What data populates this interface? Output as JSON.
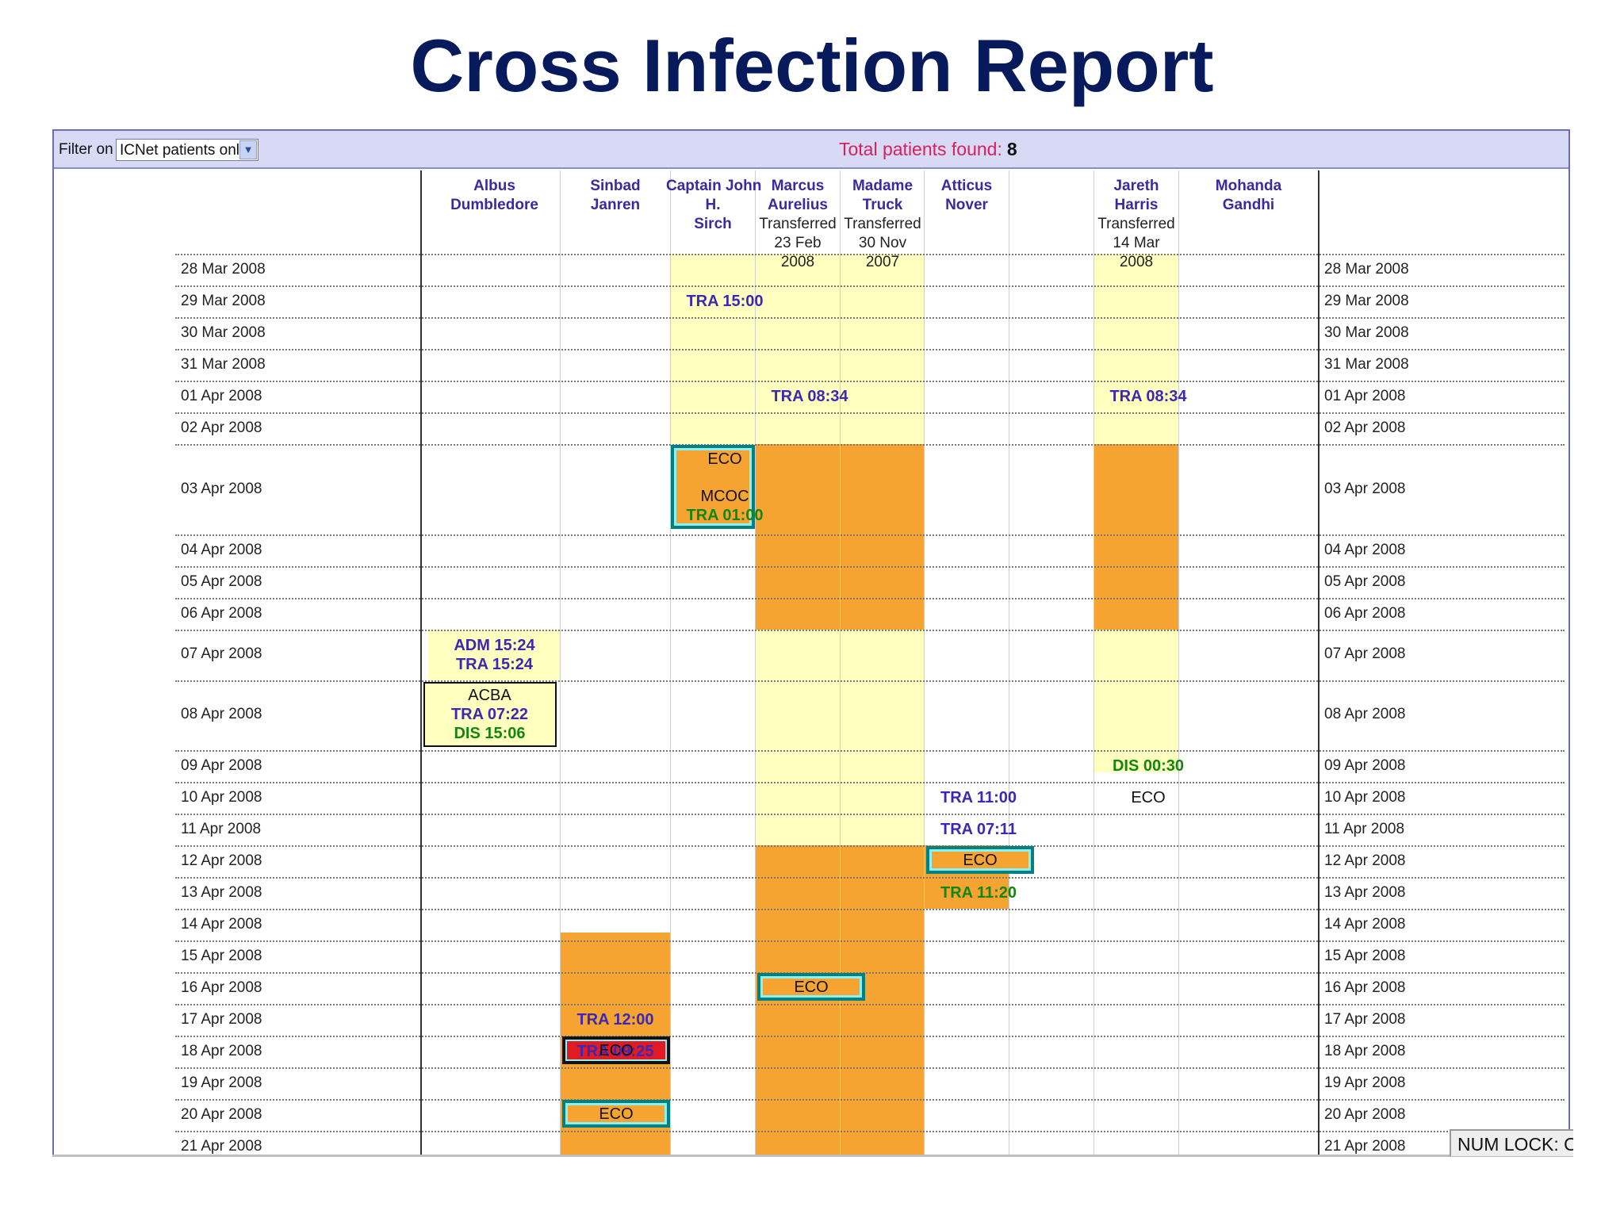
{
  "title": "Cross Infection Report",
  "filter": {
    "label": "Filter on :",
    "value": "ICNet patients only"
  },
  "total": {
    "label": "Total patients found:",
    "count": "8"
  },
  "patients": [
    {
      "name1": "Albus",
      "name2": "Dumbledore",
      "name3": "",
      "status": "",
      "status_date": ""
    },
    {
      "name1": "Sinbad",
      "name2": "Janren",
      "name3": "",
      "status": "",
      "status_date": ""
    },
    {
      "name1": "Captain John",
      "name2": "H.",
      "name3": "Sirch",
      "status": "",
      "status_date": ""
    },
    {
      "name1": "Marcus",
      "name2": "Aurelius",
      "name3": "",
      "status": "Transferred",
      "status_date": "23 Feb 2008"
    },
    {
      "name1": "Madame",
      "name2": "Truck",
      "name3": "",
      "status": "Transferred",
      "status_date": "30 Nov 2007"
    },
    {
      "name1": "Atticus",
      "name2": "Nover",
      "name3": "",
      "status": "",
      "status_date": ""
    },
    {
      "name1": "Jareth",
      "name2": "Harris",
      "name3": "",
      "status": "Transferred",
      "status_date": "14 Mar 2008"
    },
    {
      "name1": "Mohanda",
      "name2": "Gandhi",
      "name3": "",
      "status": "",
      "status_date": ""
    }
  ],
  "dates": [
    "28 Mar 2008",
    "29 Mar 2008",
    "30 Mar 2008",
    "31 Mar 2008",
    "01 Apr 2008",
    "02 Apr 2008",
    "03 Apr 2008",
    "04 Apr 2008",
    "05 Apr 2008",
    "06 Apr 2008",
    "07 Apr 2008",
    "08 Apr 2008",
    "09 Apr 2008",
    "10 Apr 2008",
    "11 Apr 2008",
    "12 Apr 2008",
    "13 Apr 2008",
    "14 Apr 2008",
    "15 Apr 2008",
    "16 Apr 2008",
    "17 Apr 2008",
    "18 Apr 2008",
    "19 Apr 2008",
    "20 Apr 2008",
    "21 Apr 2008"
  ],
  "events": {
    "sirch_tra_29mar": "TRA 15:00",
    "sirch_eco": "ECO",
    "sirch_mcoc": "MCOC",
    "sirch_tra_03apr": "TRA 01:00",
    "marcus_tra_01apr": "TRA 08:34",
    "jareth_tra_01apr": "TRA 08:34",
    "albus_adm": "ADM 15:24",
    "albus_tra_07apr": "TRA 15:24",
    "albus_acba": "ACBA",
    "albus_tra_08apr": "TRA 07:22",
    "albus_dis": "DIS 15:06",
    "jareth_dis": "DIS 00:30",
    "jareth_eco": "ECO",
    "atticus_tra_10apr": "TRA 11:00",
    "atticus_tra_11apr": "TRA 07:11",
    "atticus_eco": "ECO",
    "atticus_tra_13apr": "TRA 11:20",
    "sinbad_tra_15apr": "TRA 12:00",
    "sinbad_tra_16apr": "TRA 09:25",
    "marcus_eco": "ECO",
    "sinbad_eco_18apr": "ECO",
    "sinbad_eco_20apr": "ECO"
  },
  "statusbar": "NUM LOCK: ON",
  "colors": {
    "light": "#ffffc0",
    "orange": "#f6a431",
    "title": "#061a5c",
    "total_label": "#d8205a"
  }
}
